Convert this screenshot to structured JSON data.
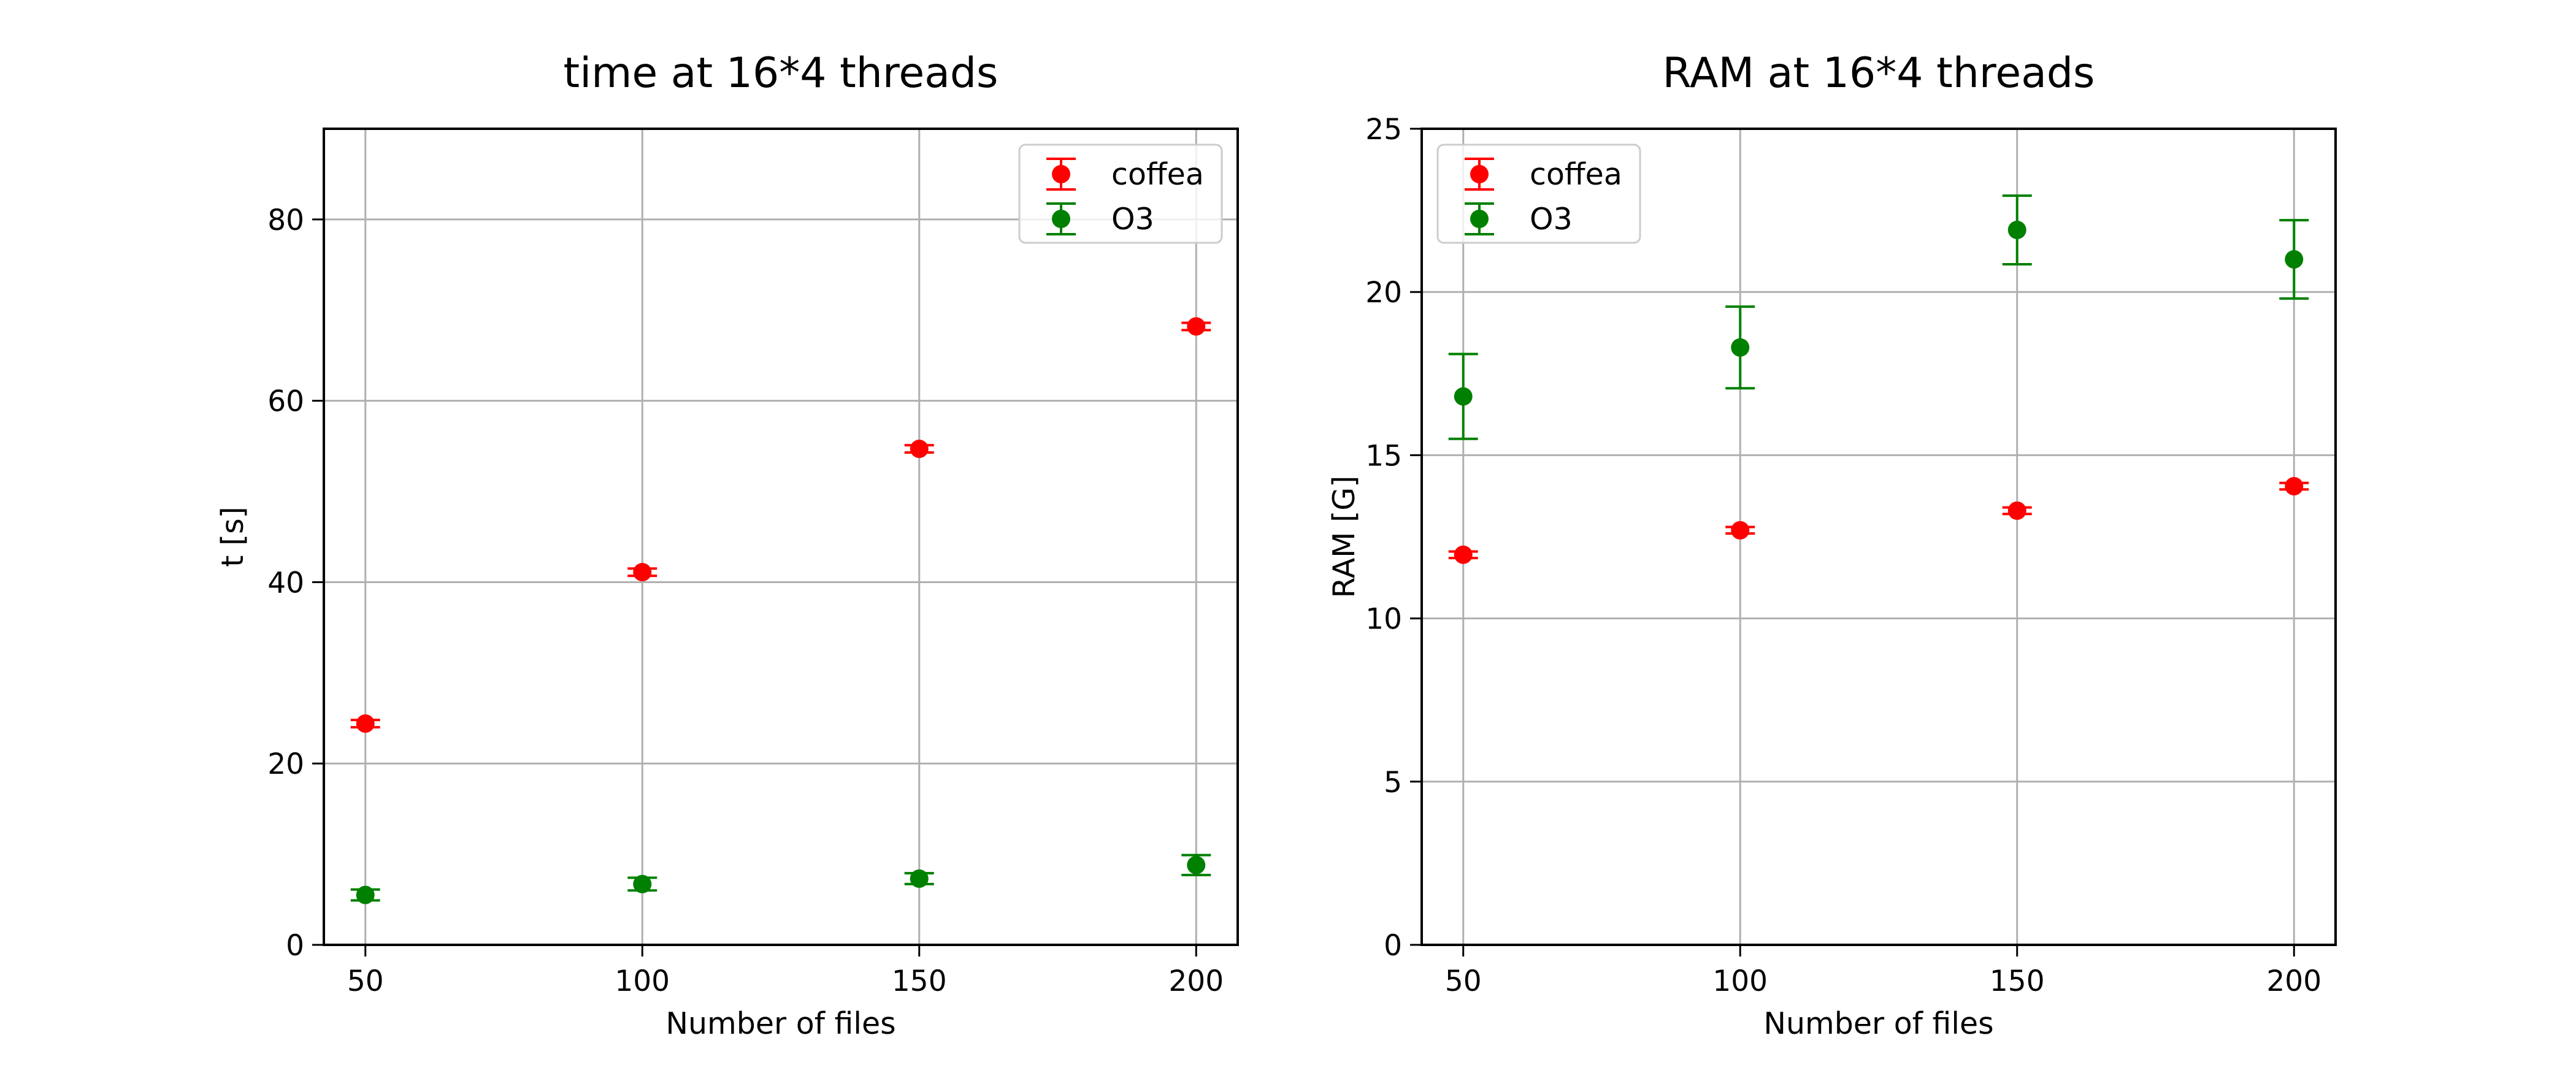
{
  "figure": {
    "background": "#ffffff",
    "grid_color": "#b0b0b0",
    "legend_border_color": "#cccccc"
  },
  "chart_data": [
    {
      "type": "scatter",
      "title": "time at 16*4 threads",
      "xlabel": "Number of files",
      "ylabel": "t [s]",
      "xlim": [
        42.5,
        207.5
      ],
      "ylim": [
        0,
        90
      ],
      "xticks": [
        50,
        100,
        150,
        200
      ],
      "yticks": [
        0,
        20,
        40,
        60,
        80
      ],
      "grid": true,
      "error_bars": true,
      "legend": "top-right",
      "x": [
        50,
        100,
        150,
        200
      ],
      "series": [
        {
          "name": "coffea",
          "color": "#ff0000",
          "values": [
            24.4,
            41.1,
            54.7,
            68.2
          ],
          "errors": [
            0.4,
            0.4,
            0.4,
            0.4
          ]
        },
        {
          "name": "O3",
          "color": "#008000",
          "values": [
            5.5,
            6.7,
            7.3,
            8.8
          ],
          "errors": [
            0.6,
            0.7,
            0.6,
            1.1
          ]
        }
      ]
    },
    {
      "type": "scatter",
      "title": "RAM at 16*4 threads",
      "xlabel": "Number of files",
      "ylabel": "RAM [G]",
      "xlim": [
        42.5,
        207.5
      ],
      "ylim": [
        0,
        25
      ],
      "xticks": [
        50,
        100,
        150,
        200
      ],
      "yticks": [
        0,
        5,
        10,
        15,
        20,
        25
      ],
      "grid": true,
      "error_bars": true,
      "legend": "top-left",
      "x": [
        50,
        100,
        150,
        200
      ],
      "series": [
        {
          "name": "coffea",
          "color": "#ff0000",
          "values": [
            11.95,
            12.7,
            13.3,
            14.05
          ],
          "errors": [
            0.1,
            0.1,
            0.1,
            0.1
          ]
        },
        {
          "name": "O3",
          "color": "#008000",
          "values": [
            16.8,
            18.3,
            21.9,
            21.0
          ],
          "errors": [
            1.3,
            1.25,
            1.05,
            1.2
          ]
        }
      ]
    }
  ]
}
